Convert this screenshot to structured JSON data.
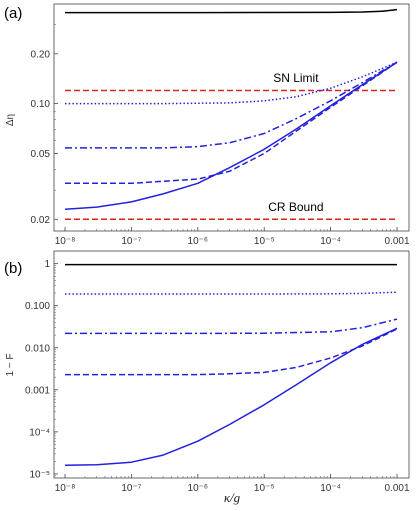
{
  "chart_data": [
    {
      "type": "line",
      "panel_label": "(a)",
      "ylabel": "Δη",
      "xlabel": "",
      "x_scale": "log",
      "y_scale": "log",
      "xlim": [
        1e-08,
        0.001
      ],
      "ylim": [
        0.017,
        0.4
      ],
      "x_ticks": [
        1e-08,
        1e-07,
        1e-06,
        1e-05,
        0.0001,
        0.001
      ],
      "x_tick_labels": [
        "10⁻⁸",
        "10⁻⁷",
        "10⁻⁶",
        "10⁻⁵",
        "10⁻⁴",
        "0.001"
      ],
      "y_ticks": [
        0.02,
        0.05,
        0.1,
        0.2
      ],
      "y_tick_labels": [
        "0.02",
        "0.05",
        "0.10",
        "0.20"
      ],
      "annotations": [
        {
          "text": "SN Limit",
          "x": 3e-05,
          "y": 0.135
        },
        {
          "text": "CR Bound",
          "x": 3e-05,
          "y": 0.0225
        }
      ],
      "series": [
        {
          "color": "#000000",
          "dash": "solid",
          "x": [
            1e-08,
            1e-06,
            0.0001,
            0.0003,
            0.0006,
            0.001
          ],
          "y": [
            0.355,
            0.355,
            0.356,
            0.358,
            0.362,
            0.37
          ]
        },
        {
          "color": "#2222dd",
          "dash": "dotted",
          "x": [
            1e-08,
            3e-07,
            3e-06,
            1e-05,
            3e-05,
            0.0001,
            0.0003,
            0.001
          ],
          "y": [
            0.1,
            0.1,
            0.101,
            0.104,
            0.11,
            0.124,
            0.145,
            0.178
          ]
        },
        {
          "color": "#2222dd",
          "dash": "dashdot",
          "x": [
            1e-08,
            3e-07,
            1e-06,
            3e-06,
            1e-05,
            3e-05,
            0.0001,
            0.0003,
            0.001
          ],
          "y": [
            0.054,
            0.054,
            0.055,
            0.058,
            0.066,
            0.081,
            0.104,
            0.134,
            0.178
          ]
        },
        {
          "color": "#2222dd",
          "dash": "dashed",
          "x": [
            1e-08,
            1e-07,
            1e-06,
            3e-06,
            1e-05,
            3e-05,
            0.0001,
            0.0003,
            0.001
          ],
          "y": [
            0.033,
            0.033,
            0.035,
            0.039,
            0.05,
            0.068,
            0.095,
            0.128,
            0.178
          ]
        },
        {
          "color": "#2222dd",
          "dash": "solid",
          "x": [
            1e-08,
            3e-08,
            1e-07,
            3e-07,
            1e-06,
            3e-06,
            1e-05,
            3e-05,
            0.0001,
            0.0003,
            0.001
          ],
          "y": [
            0.023,
            0.0237,
            0.0255,
            0.0285,
            0.033,
            0.041,
            0.053,
            0.07,
            0.097,
            0.13,
            0.178
          ]
        },
        {
          "color": "#dd2222",
          "dash": "dashed",
          "x": [
            1e-08,
            0.001
          ],
          "y": [
            0.12,
            0.12
          ]
        },
        {
          "color": "#dd2222",
          "dash": "dashed",
          "x": [
            1e-08,
            0.001
          ],
          "y": [
            0.02,
            0.02
          ]
        }
      ]
    },
    {
      "type": "line",
      "panel_label": "(b)",
      "ylabel": "1 − F",
      "xlabel": "κ/g",
      "x_scale": "log",
      "y_scale": "log",
      "xlim": [
        1e-08,
        0.001
      ],
      "ylim": [
        8e-06,
        2
      ],
      "x_ticks": [
        1e-08,
        1e-07,
        1e-06,
        1e-05,
        0.0001,
        0.001
      ],
      "x_tick_labels": [
        "10⁻⁸",
        "10⁻⁷",
        "10⁻⁶",
        "10⁻⁵",
        "10⁻⁴",
        "0.001"
      ],
      "y_ticks": [
        1e-05,
        0.0001,
        0.001,
        0.01,
        0.1,
        1
      ],
      "y_tick_labels": [
        "10⁻⁵",
        "10⁻⁴",
        "0.001",
        "0.010",
        "0.100",
        "1"
      ],
      "series": [
        {
          "color": "#000000",
          "dash": "solid",
          "x": [
            1e-08,
            0.001
          ],
          "y": [
            0.95,
            0.95
          ]
        },
        {
          "color": "#2222dd",
          "dash": "dotted",
          "x": [
            1e-08,
            1e-06,
            1e-05,
            0.0001,
            0.0003,
            0.001
          ],
          "y": [
            0.19,
            0.19,
            0.19,
            0.192,
            0.196,
            0.21
          ]
        },
        {
          "color": "#2222dd",
          "dash": "dashdot",
          "x": [
            1e-08,
            1e-06,
            1e-05,
            0.0001,
            0.0003,
            0.001
          ],
          "y": [
            0.022,
            0.022,
            0.0222,
            0.024,
            0.03,
            0.048
          ]
        },
        {
          "color": "#2222dd",
          "dash": "dashed",
          "x": [
            1e-08,
            1e-06,
            3e-06,
            1e-05,
            3e-05,
            0.0001,
            0.0003,
            0.001
          ],
          "y": [
            0.0023,
            0.0023,
            0.0024,
            0.0026,
            0.0034,
            0.0057,
            0.011,
            0.028
          ]
        },
        {
          "color": "#2222dd",
          "dash": "solid",
          "x": [
            1e-08,
            3e-08,
            1e-07,
            3e-07,
            1e-06,
            3e-06,
            1e-05,
            3e-05,
            0.0001,
            0.0003,
            0.001
          ],
          "y": [
            1.6e-05,
            1.65e-05,
            1.9e-05,
            2.8e-05,
            6e-05,
            0.00015,
            0.00044,
            0.0013,
            0.0044,
            0.012,
            0.029
          ]
        }
      ]
    }
  ]
}
